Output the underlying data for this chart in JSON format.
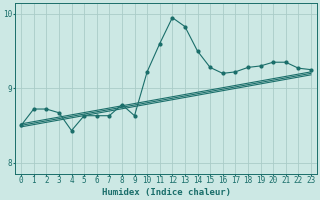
{
  "xlabel": "Humidex (Indice chaleur)",
  "ylabel": "",
  "xlim": [
    -0.5,
    23.5
  ],
  "ylim": [
    7.85,
    10.15
  ],
  "yticks": [
    8,
    9,
    10
  ],
  "xticks": [
    0,
    1,
    2,
    3,
    4,
    5,
    6,
    7,
    8,
    9,
    10,
    11,
    12,
    13,
    14,
    15,
    16,
    17,
    18,
    19,
    20,
    21,
    22,
    23
  ],
  "bg_color": "#cce8e4",
  "grid_color": "#aaccc8",
  "line_color": "#1a6e6a",
  "line_width": 0.8,
  "marker_size": 2.0,
  "series1_x": [
    0,
    1,
    2,
    3,
    4,
    5,
    6,
    7,
    8,
    9,
    10,
    11,
    12,
    13,
    14,
    15,
    16,
    17,
    18,
    19,
    20,
    21,
    22,
    23
  ],
  "series1_y": [
    8.5,
    8.72,
    8.72,
    8.67,
    8.43,
    8.63,
    8.63,
    8.63,
    8.78,
    8.63,
    9.22,
    9.6,
    9.95,
    9.83,
    9.5,
    9.28,
    9.2,
    9.22,
    9.28,
    9.3,
    9.35,
    9.35,
    9.27,
    9.25
  ],
  "series2_x": [
    0,
    23
  ],
  "series2_y": [
    8.5,
    9.2
  ],
  "series3_x": [
    0,
    23
  ],
  "series3_y": [
    8.52,
    9.22
  ],
  "series4_x": [
    0,
    23
  ],
  "series4_y": [
    8.48,
    9.18
  ]
}
